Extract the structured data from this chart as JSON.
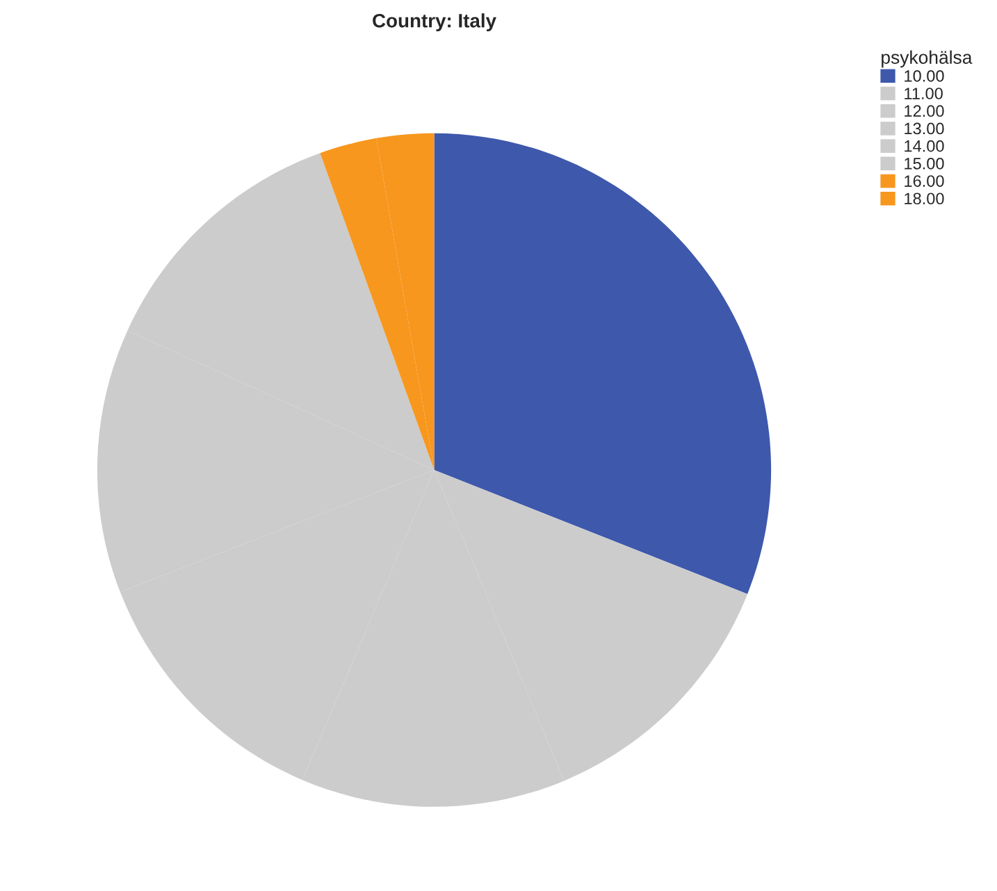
{
  "chart_data": {
    "type": "pie",
    "title": "Country: Italy",
    "legend_title": "psykohälsa",
    "legend": "top right",
    "categories": [
      "10.00",
      "11.00",
      "12.00",
      "13.00",
      "14.00",
      "15.00",
      "16.00",
      "18.00"
    ],
    "values": [
      31.0,
      12.7,
      12.7,
      12.7,
      12.7,
      12.7,
      2.75,
      2.75
    ],
    "colors": [
      "#3e58ac",
      "#cccccc",
      "#cccccc",
      "#cccccc",
      "#cccccc",
      "#cccccc",
      "#f7971e",
      "#f7971e"
    ]
  }
}
